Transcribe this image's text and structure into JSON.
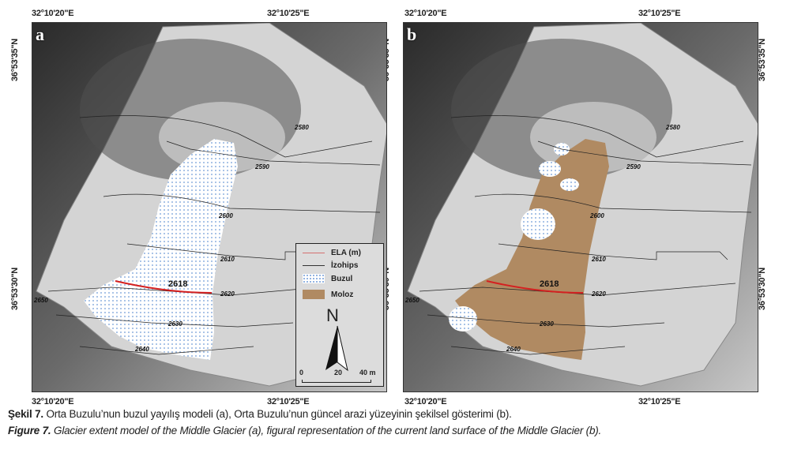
{
  "figure": {
    "panels": [
      {
        "letter": "a",
        "style": "buzul"
      },
      {
        "letter": "b",
        "style": "moloz"
      }
    ],
    "lon_labels": [
      "32°10'20\"E",
      "32°10'25\"E"
    ],
    "lat_labels": [
      "36°53'35\"N",
      "36°53'30\"N"
    ],
    "contour_labels": [
      "2580",
      "2590",
      "2600",
      "2610",
      "2620",
      "2630",
      "2640",
      "2650"
    ],
    "ela_label": "2618",
    "colors": {
      "ela": "#d42020",
      "buzul": "#6d9ad6",
      "moloz": "#b08a62",
      "contour": "#222222"
    }
  },
  "legend": {
    "items": [
      "ELA (m)",
      "İzohips",
      "Buzul",
      "Moloz"
    ],
    "north": "N",
    "scale": [
      "0",
      "20",
      "40 m"
    ]
  },
  "caption": {
    "tr_bold": "Şekil 7.",
    "tr_text": " Orta Buzulu’nun buzul yayılış modeli (a), Orta Buzulu’nun güncel arazi yüzeyinin şekilsel gösterimi (b).",
    "en_bold": "Figure 7.",
    "en_text": " Glacier extent model of the Middle Glacier (a), figural representation of the current land surface of the Middle Glacier (b)."
  }
}
